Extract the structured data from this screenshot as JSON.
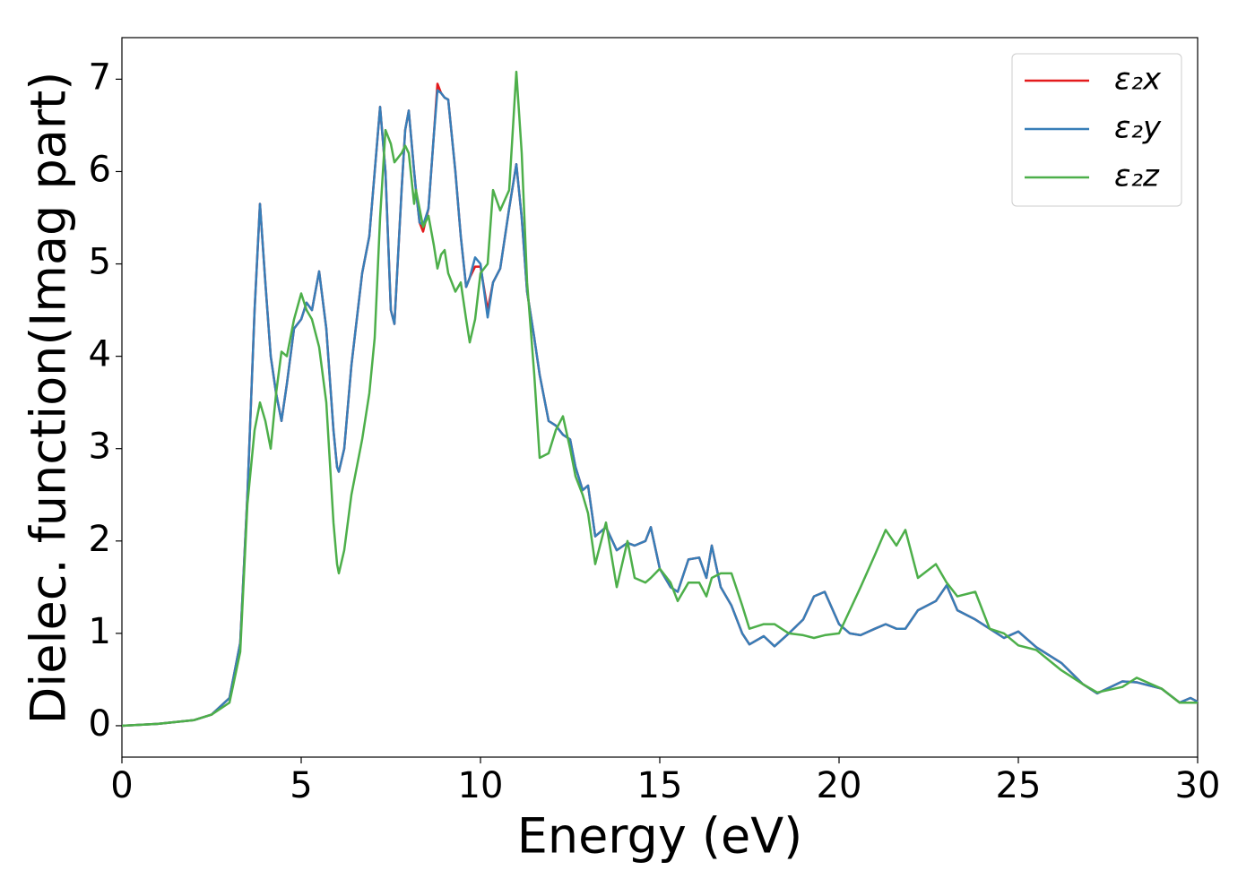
{
  "chart_data": {
    "type": "line",
    "xlabel": "Energy (eV)",
    "ylabel": "Dielec. function(Imag part)",
    "xlim": [
      0,
      30
    ],
    "ylim": [
      -0.34,
      7.45
    ],
    "xticks": [
      0,
      5,
      10,
      15,
      20,
      25,
      30
    ],
    "yticks": [
      0,
      1,
      2,
      3,
      4,
      5,
      6,
      7
    ],
    "grid": false,
    "legend": "upper right",
    "x": [
      0,
      1,
      2,
      2.5,
      3,
      3.3,
      3.5,
      3.7,
      3.85,
      4.0,
      4.15,
      4.3,
      4.45,
      4.6,
      4.8,
      5.0,
      5.15,
      5.3,
      5.5,
      5.7,
      5.9,
      6.0,
      6.05,
      6.2,
      6.4,
      6.7,
      6.9,
      7.05,
      7.2,
      7.35,
      7.5,
      7.6,
      7.8,
      7.9,
      8.0,
      8.15,
      8.2,
      8.3,
      8.4,
      8.55,
      8.7,
      8.8,
      8.9,
      9.0,
      9.1,
      9.3,
      9.45,
      9.6,
      9.7,
      9.85,
      10.0,
      10.2,
      10.35,
      10.55,
      10.8,
      11.0,
      11.15,
      11.3,
      11.5,
      11.65,
      11.9,
      12.1,
      12.3,
      12.5,
      12.65,
      12.85,
      13.0,
      13.2,
      13.5,
      13.8,
      14.1,
      14.3,
      14.6,
      14.75,
      15.0,
      15.3,
      15.5,
      15.8,
      16.1,
      16.3,
      16.45,
      16.7,
      17.0,
      17.3,
      17.5,
      17.9,
      18.2,
      18.6,
      19.0,
      19.3,
      19.6,
      20.0,
      20.3,
      20.6,
      21.0,
      21.3,
      21.6,
      21.85,
      22.2,
      22.7,
      23.0,
      23.3,
      23.8,
      24.2,
      24.6,
      25.0,
      25.5,
      26.2,
      26.8,
      27.2,
      27.9,
      28.3,
      29.0,
      29.5,
      29.8,
      30.0
    ],
    "series": [
      {
        "name": "ε₂x",
        "color": "#e41a1c",
        "values": [
          0,
          0.02,
          0.06,
          0.12,
          0.3,
          0.9,
          2.5,
          4.5,
          5.65,
          4.8,
          4.0,
          3.6,
          3.3,
          3.7,
          4.3,
          4.4,
          4.58,
          4.5,
          4.92,
          4.3,
          3.2,
          2.8,
          2.75,
          3.0,
          3.9,
          4.9,
          5.3,
          6.0,
          6.7,
          6.0,
          4.5,
          4.35,
          5.8,
          6.45,
          6.66,
          6.0,
          5.8,
          5.45,
          5.35,
          5.6,
          6.4,
          6.95,
          6.85,
          6.8,
          6.78,
          6.0,
          5.3,
          4.75,
          4.85,
          4.97,
          4.97,
          4.5,
          4.8,
          4.95,
          5.6,
          6.08,
          5.5,
          4.7,
          4.2,
          3.8,
          3.3,
          3.25,
          3.15,
          3.1,
          2.8,
          2.55,
          2.6,
          2.05,
          2.15,
          1.9,
          1.98,
          1.95,
          2.0,
          2.15,
          1.7,
          1.5,
          1.45,
          1.8,
          1.82,
          1.6,
          1.95,
          1.5,
          1.3,
          1.0,
          0.88,
          0.97,
          0.86,
          1.0,
          1.15,
          1.4,
          1.45,
          1.1,
          1.0,
          0.98,
          1.05,
          1.1,
          1.05,
          1.05,
          1.25,
          1.35,
          1.52,
          1.25,
          1.15,
          1.05,
          0.95,
          1.02,
          0.85,
          0.68,
          0.45,
          0.35,
          0.48,
          0.47,
          0.4,
          0.25,
          0.3,
          0.26
        ]
      },
      {
        "name": "ε₂y",
        "color": "#377eb8",
        "values": [
          0,
          0.02,
          0.06,
          0.12,
          0.3,
          0.9,
          2.5,
          4.5,
          5.65,
          4.8,
          4.0,
          3.6,
          3.3,
          3.7,
          4.3,
          4.4,
          4.58,
          4.5,
          4.92,
          4.3,
          3.2,
          2.8,
          2.75,
          3.0,
          3.9,
          4.9,
          5.3,
          6.0,
          6.7,
          6.0,
          4.5,
          4.35,
          5.8,
          6.45,
          6.66,
          6.0,
          5.8,
          5.45,
          5.42,
          5.6,
          6.4,
          6.88,
          6.85,
          6.8,
          6.78,
          6.0,
          5.3,
          4.75,
          4.85,
          5.07,
          5.0,
          4.42,
          4.8,
          4.95,
          5.6,
          6.08,
          5.5,
          4.7,
          4.2,
          3.8,
          3.3,
          3.25,
          3.15,
          3.1,
          2.8,
          2.55,
          2.6,
          2.05,
          2.15,
          1.9,
          1.98,
          1.95,
          2.0,
          2.15,
          1.7,
          1.5,
          1.45,
          1.8,
          1.82,
          1.6,
          1.95,
          1.5,
          1.3,
          1.0,
          0.88,
          0.97,
          0.86,
          1.0,
          1.15,
          1.4,
          1.45,
          1.1,
          1.0,
          0.98,
          1.05,
          1.1,
          1.05,
          1.05,
          1.25,
          1.35,
          1.52,
          1.25,
          1.15,
          1.05,
          0.95,
          1.02,
          0.85,
          0.68,
          0.45,
          0.35,
          0.48,
          0.47,
          0.4,
          0.25,
          0.3,
          0.26
        ]
      },
      {
        "name": "ε₂z",
        "color": "#4daf4a",
        "values": [
          0,
          0.02,
          0.06,
          0.12,
          0.25,
          0.8,
          2.4,
          3.2,
          3.5,
          3.3,
          3.0,
          3.6,
          4.05,
          4.0,
          4.4,
          4.68,
          4.5,
          4.4,
          4.1,
          3.5,
          2.2,
          1.75,
          1.65,
          1.9,
          2.5,
          3.1,
          3.6,
          4.2,
          5.5,
          6.45,
          6.3,
          6.1,
          6.2,
          6.28,
          6.2,
          5.65,
          5.8,
          5.6,
          5.4,
          5.52,
          5.2,
          4.95,
          5.1,
          5.15,
          4.9,
          4.7,
          4.8,
          4.4,
          4.15,
          4.4,
          4.9,
          5.0,
          5.8,
          5.58,
          5.8,
          7.08,
          6.2,
          4.8,
          3.8,
          2.9,
          2.95,
          3.2,
          3.35,
          3.0,
          2.7,
          2.5,
          2.3,
          1.75,
          2.2,
          1.5,
          2.0,
          1.6,
          1.55,
          1.6,
          1.7,
          1.55,
          1.35,
          1.55,
          1.55,
          1.4,
          1.6,
          1.65,
          1.65,
          1.3,
          1.05,
          1.1,
          1.1,
          1.0,
          0.98,
          0.95,
          0.98,
          1.0,
          1.25,
          1.5,
          1.85,
          2.12,
          1.95,
          2.12,
          1.6,
          1.75,
          1.55,
          1.4,
          1.45,
          1.05,
          1.0,
          0.87,
          0.82,
          0.6,
          0.45,
          0.36,
          0.42,
          0.52,
          0.4,
          0.25,
          0.25,
          0.25
        ]
      }
    ]
  }
}
